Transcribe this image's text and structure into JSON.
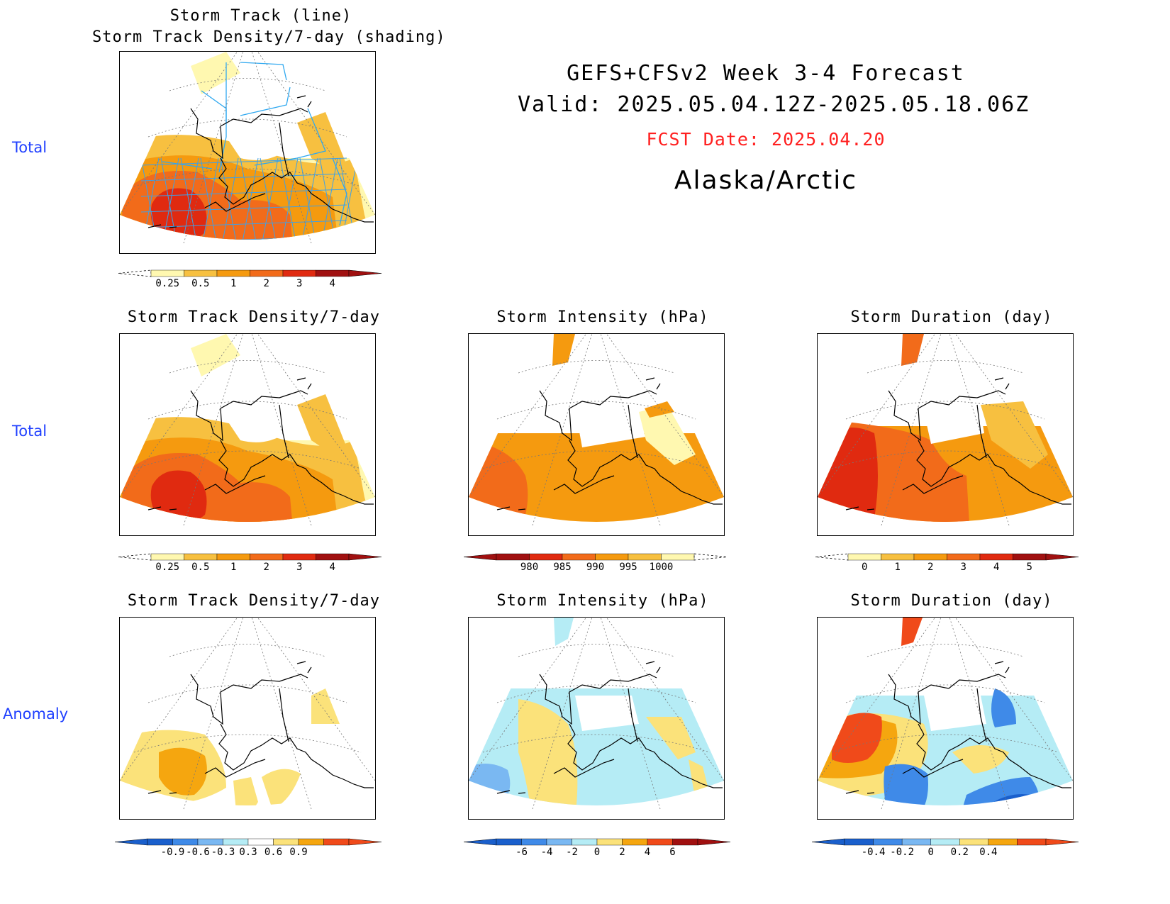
{
  "header": {
    "line1": "GEFS+CFSv2 Week 3-4 Forecast",
    "line2": "Valid: 2025.05.04.12Z-2025.05.18.06Z",
    "fcst_date": "FCST Date: 2025.04.20",
    "region": "Alaska/Arctic",
    "fcst_color": "#ff2020"
  },
  "row_labels": {
    "row1": "Total",
    "row2": "Total",
    "row3": "Anomaly"
  },
  "panels": {
    "p1": {
      "title1": "Storm Track (line)",
      "title2": "Storm Track Density/7-day (shading)"
    },
    "p2": {
      "title": "Storm Track Density/7-day"
    },
    "p3": {
      "title": "Storm Intensity (hPa)"
    },
    "p4": {
      "title": "Storm Duration (day)"
    },
    "p5": {
      "title": "Storm Track Density/7-day"
    },
    "p6": {
      "title": "Storm Intensity (hPa)"
    },
    "p7": {
      "title": "Storm Duration (day)"
    }
  },
  "colorbars": {
    "density": {
      "ticks": [
        "0.25",
        "0.5",
        "1",
        "2",
        "3",
        "4"
      ],
      "colors": [
        "#fff8b0",
        "#f7c040",
        "#f59a0f",
        "#f26b1a",
        "#e02a10",
        "#a01010"
      ]
    },
    "intensity": {
      "ticks": [
        "980",
        "985",
        "990",
        "995",
        "1000"
      ],
      "colors": [
        "#a01010",
        "#e02a10",
        "#f26b1a",
        "#f59a0f",
        "#f7c040",
        "#fff8b0"
      ]
    },
    "duration": {
      "ticks": [
        "0",
        "1",
        "2",
        "3",
        "4",
        "5"
      ],
      "colors": [
        "#fff8b0",
        "#f7c040",
        "#f59a0f",
        "#f26b1a",
        "#e02a10",
        "#a01010"
      ]
    },
    "density_anom": {
      "ticks": [
        "-0.9",
        "-0.6",
        "-0.3",
        "0.3",
        "0.6",
        "0.9"
      ],
      "colors": [
        "#1a5fcc",
        "#3f8ae8",
        "#7ab8f2",
        "#b5ecf5",
        "#ffffff",
        "#fbe27a",
        "#f5a60f",
        "#f04a1a"
      ]
    },
    "intensity_anom": {
      "ticks": [
        "-6",
        "-4",
        "-2",
        "0",
        "2",
        "4",
        "6"
      ],
      "colors": [
        "#1a5fcc",
        "#3f8ae8",
        "#7ab8f2",
        "#b5ecf5",
        "#fbe27a",
        "#f5a60f",
        "#f04a1a",
        "#a01010"
      ]
    },
    "duration_anom": {
      "ticks": [
        "-0.4",
        "-0.2",
        "0",
        "0.2",
        "0.4"
      ],
      "colors": [
        "#1a5fcc",
        "#3f8ae8",
        "#7ab8f2",
        "#b5ecf5",
        "#fbe27a",
        "#f5a60f",
        "#f04a1a"
      ]
    }
  }
}
